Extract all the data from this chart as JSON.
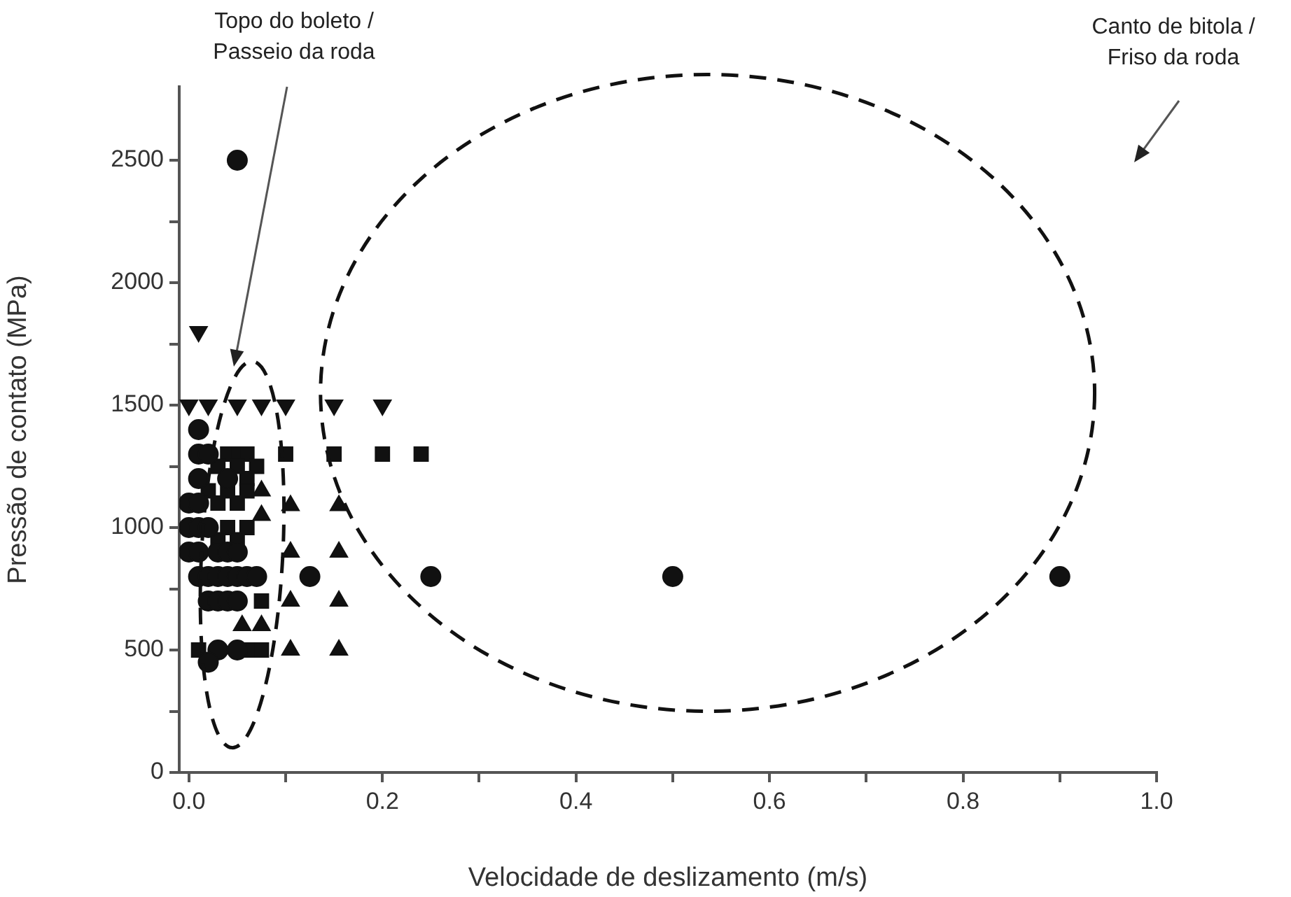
{
  "chart_data": {
    "type": "scatter",
    "xlabel": "Velocidade de deslizamento (m/s)",
    "ylabel": "Pressão de contato (MPa)",
    "xlim": [
      -0.01,
      1.0
    ],
    "ylim": [
      0,
      2800
    ],
    "xticks": [
      {
        "value": 0,
        "label": "0.0"
      },
      {
        "value": 0.1,
        "label": null
      },
      {
        "value": 0.2,
        "label": "0.2"
      },
      {
        "value": 0.3,
        "label": null
      },
      {
        "value": 0.4,
        "label": "0.4"
      },
      {
        "value": 0.5,
        "label": null
      },
      {
        "value": 0.6,
        "label": "0.6"
      },
      {
        "value": 0.7,
        "label": null
      },
      {
        "value": 0.8,
        "label": "0.8"
      },
      {
        "value": 0.9,
        "label": null
      },
      {
        "value": 1.0,
        "label": "1.0"
      }
    ],
    "yticks": [
      0,
      {
        "value": 250,
        "label": null
      },
      500,
      {
        "value": 750,
        "label": null
      },
      1000,
      {
        "value": 1250,
        "label": null
      },
      1500,
      {
        "value": 1750,
        "label": null
      },
      2000,
      {
        "value": 2250,
        "label": null
      },
      2500
    ],
    "grid": false,
    "legend": false,
    "annotations": [
      "Topo do boleto /\nPasseio da roda",
      "Canto de bitola /\nFriso da roda"
    ],
    "series": [
      {
        "color": "#111111",
        "marker": "circle",
        "x": [
          0.05,
          0.01,
          0.01,
          0.02,
          0.01,
          0.04,
          0.0,
          0.01,
          0.0,
          0.01,
          0.02,
          0.0,
          0.01,
          0.03,
          0.04,
          0.05,
          0.01,
          0.02,
          0.03,
          0.04,
          0.05,
          0.06,
          0.07,
          0.02,
          0.03,
          0.04,
          0.05,
          0.03,
          0.05,
          0.02,
          0.125,
          0.25,
          0.5,
          0.9
        ],
        "values": [
          2500,
          1400,
          1300,
          1300,
          1200,
          1200,
          1100,
          1100,
          1000,
          1000,
          1000,
          900,
          900,
          900,
          900,
          900,
          800,
          800,
          800,
          800,
          800,
          800,
          800,
          700,
          700,
          700,
          700,
          500,
          500,
          450,
          800,
          800,
          800,
          800
        ]
      },
      {
        "color": "#111111",
        "marker": "square",
        "x": [
          0.04,
          0.05,
          0.06,
          0.1,
          0.15,
          0.2,
          0.24,
          0.03,
          0.05,
          0.07,
          0.06,
          0.02,
          0.04,
          0.06,
          0.03,
          0.05,
          0.04,
          0.06,
          0.03,
          0.05,
          0.075,
          0.075,
          0.01,
          0.06
        ],
        "values": [
          1300,
          1300,
          1300,
          1300,
          1300,
          1300,
          1300,
          1250,
          1250,
          1250,
          1200,
          1150,
          1150,
          1150,
          1100,
          1100,
          1000,
          1000,
          950,
          950,
          700,
          500,
          500,
          500
        ]
      },
      {
        "color": "#111111",
        "marker": "triangle",
        "x": [
          0.075,
          0.075,
          0.105,
          0.155,
          0.105,
          0.155,
          0.105,
          0.155,
          0.105,
          0.155,
          0.055,
          0.075
        ],
        "values": [
          1150,
          1050,
          1090,
          1090,
          900,
          900,
          700,
          700,
          500,
          500,
          600,
          600
        ]
      },
      {
        "color": "#111111",
        "marker": "triangle-down",
        "x": [
          0.0,
          0.02,
          0.05,
          0.075,
          0.1,
          0.15,
          0.2,
          0.01
        ],
        "values": [
          1500,
          1500,
          1500,
          1500,
          1500,
          1500,
          1500,
          1800
        ]
      }
    ]
  }
}
